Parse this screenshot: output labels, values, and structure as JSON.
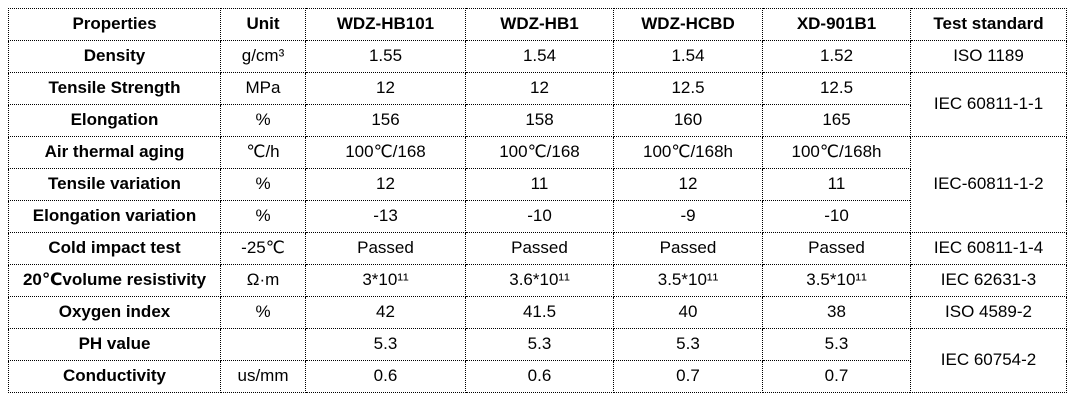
{
  "table": {
    "columns": [
      "Properties",
      "Unit",
      "WDZ-HB101",
      "WDZ-HB1",
      "WDZ-HCBD",
      "XD-901B1",
      "Test standard"
    ],
    "rows": [
      {
        "property": "Density",
        "unit": "g/cm³",
        "values": [
          "1.55",
          "1.54",
          "1.54",
          "1.52"
        ]
      },
      {
        "property": "Tensile Strength",
        "unit": "MPa",
        "values": [
          "12",
          "12",
          "12.5",
          "12.5"
        ]
      },
      {
        "property": "Elongation",
        "unit": "%",
        "values": [
          "156",
          "158",
          "160",
          "165"
        ]
      },
      {
        "property": "Air thermal aging",
        "unit": "℃/h",
        "values": [
          "100℃/168",
          "100℃/168",
          "100℃/168h",
          "100℃/168h"
        ]
      },
      {
        "property": "Tensile variation",
        "unit": "%",
        "values": [
          "12",
          "11",
          "12",
          "11"
        ]
      },
      {
        "property": "Elongation variation",
        "unit": "%",
        "values": [
          "-13",
          "-10",
          "-9",
          "-10"
        ]
      },
      {
        "property": "Cold impact test",
        "unit": "-25℃",
        "values": [
          "Passed",
          "Passed",
          "Passed",
          "Passed"
        ]
      },
      {
        "property": "20℃volume resistivity",
        "unit": "Ω·m",
        "values": [
          "3*10¹¹",
          "3.6*10¹¹",
          "3.5*10¹¹",
          "3.5*10¹¹"
        ]
      },
      {
        "property": "Oxygen index",
        "unit": "%",
        "values": [
          "42",
          "41.5",
          "40",
          "38"
        ]
      },
      {
        "property": "PH value",
        "unit": "",
        "values": [
          "5.3",
          "5.3",
          "5.3",
          "5.3"
        ]
      },
      {
        "property": "Conductivity",
        "unit": "us/mm",
        "values": [
          "0.6",
          "0.6",
          "0.7",
          "0.7"
        ]
      }
    ],
    "standards": [
      {
        "label": "ISO 1189",
        "rows": 1
      },
      {
        "label": "IEC 60811-1-1",
        "rows": 2
      },
      {
        "label": "IEC-60811-1-2",
        "rows": 3
      },
      {
        "label": "IEC 60811-1-4",
        "rows": 1
      },
      {
        "label": "IEC 62631-3",
        "rows": 1
      },
      {
        "label": "ISO 4589-2",
        "rows": 1
      },
      {
        "label": "IEC 60754-2",
        "rows": 2
      }
    ]
  },
  "colors": {
    "border": "#000000",
    "text": "#000000",
    "background": "#ffffff"
  }
}
